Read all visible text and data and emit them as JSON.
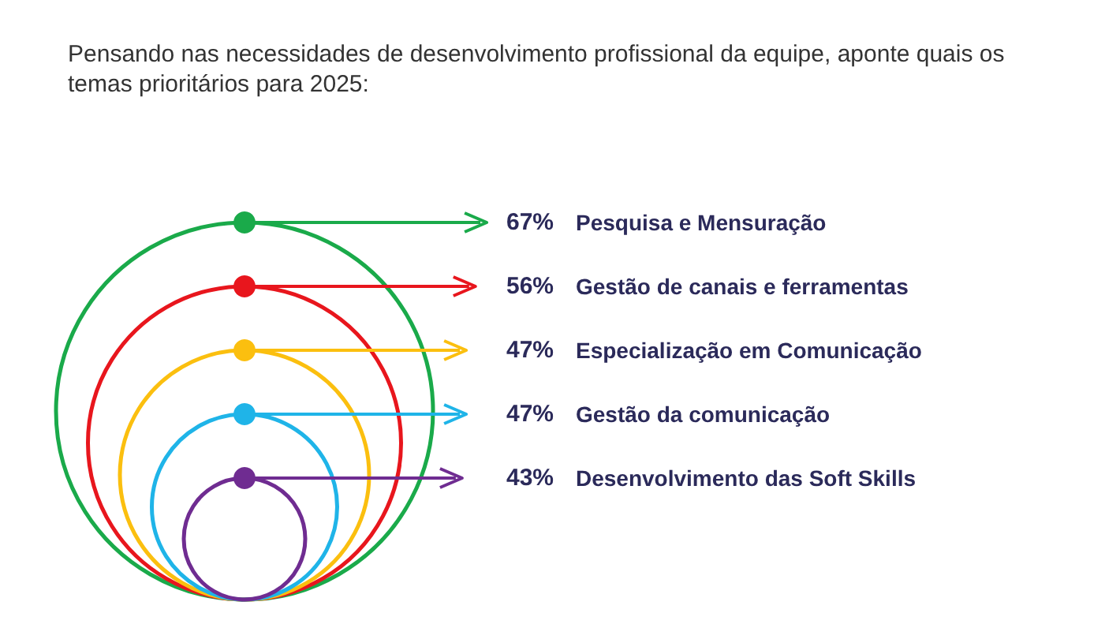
{
  "chart_data": {
    "type": "other",
    "title": "Pensando nas necessidades de desenvolvimento profissional da equipe, aponte quais os temas prioritários para 2025:",
    "categories": [
      "Pesquisa e Mensuração",
      "Gestão de canais e ferramentas",
      "Especialização em Comunicação",
      "Gestão da comunicação",
      "Desenvolvimento das Soft Skills"
    ],
    "values": [
      67,
      56,
      47,
      47,
      43
    ],
    "value_labels": [
      "67%",
      "56%",
      "47%",
      "47%",
      "43%"
    ],
    "colors": [
      "#1aaa4a",
      "#e8161d",
      "#fbbf0f",
      "#1fb4e8",
      "#6f2c91"
    ]
  }
}
